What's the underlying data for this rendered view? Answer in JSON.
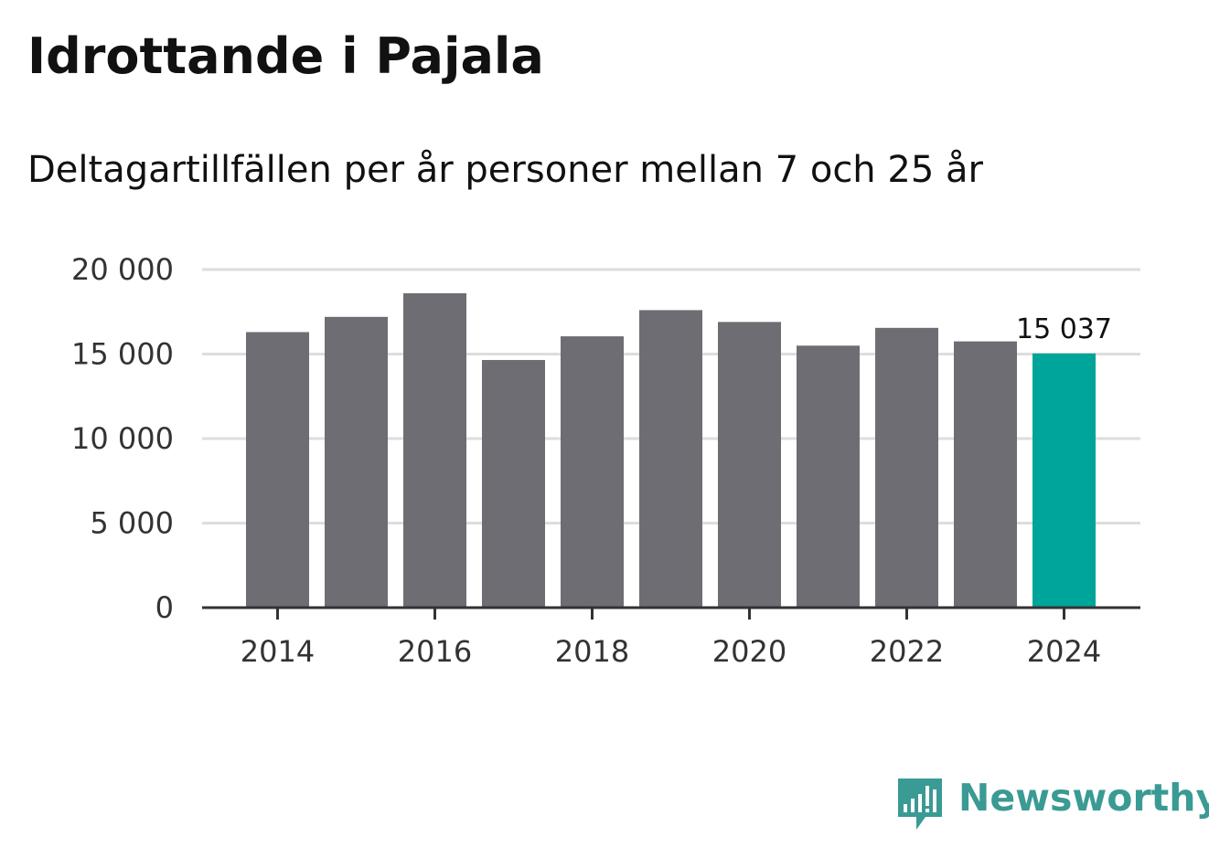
{
  "title": "Idrottande i Pajala",
  "subtitle": "Deltagartillfällen per år personer mellan 7 och 25 år",
  "brand": {
    "name": "Newsworthy",
    "color": "#3a9a94",
    "icon": "newsworthy-logo-icon"
  },
  "colors": {
    "bar": "#6e6d73",
    "highlight": "#00a59a",
    "grid": "#dddddd",
    "axis": "#333333",
    "tick_text": "#333333"
  },
  "chart_data": {
    "type": "bar",
    "title": "Idrottande i Pajala",
    "subtitle": "Deltagartillfällen per år personer mellan 7 och 25 år",
    "xlabel": "",
    "ylabel": "",
    "categories": [
      "2014",
      "2015",
      "2016",
      "2017",
      "2018",
      "2019",
      "2020",
      "2021",
      "2022",
      "2023",
      "2024"
    ],
    "values": [
      16300,
      17200,
      18600,
      14650,
      16050,
      17600,
      16900,
      15500,
      16550,
      15750,
      15037
    ],
    "highlight_index": 10,
    "highlight_label": "15 037",
    "ylim": [
      0,
      20000
    ],
    "yticks": [
      0,
      5000,
      10000,
      15000,
      20000
    ],
    "ytick_labels": [
      "0",
      "5 000",
      "10 000",
      "15 000",
      "20 000"
    ],
    "xtick_labels": [
      "2014",
      "2016",
      "2018",
      "2020",
      "2022",
      "2024"
    ],
    "grid": true,
    "legend": "none"
  }
}
